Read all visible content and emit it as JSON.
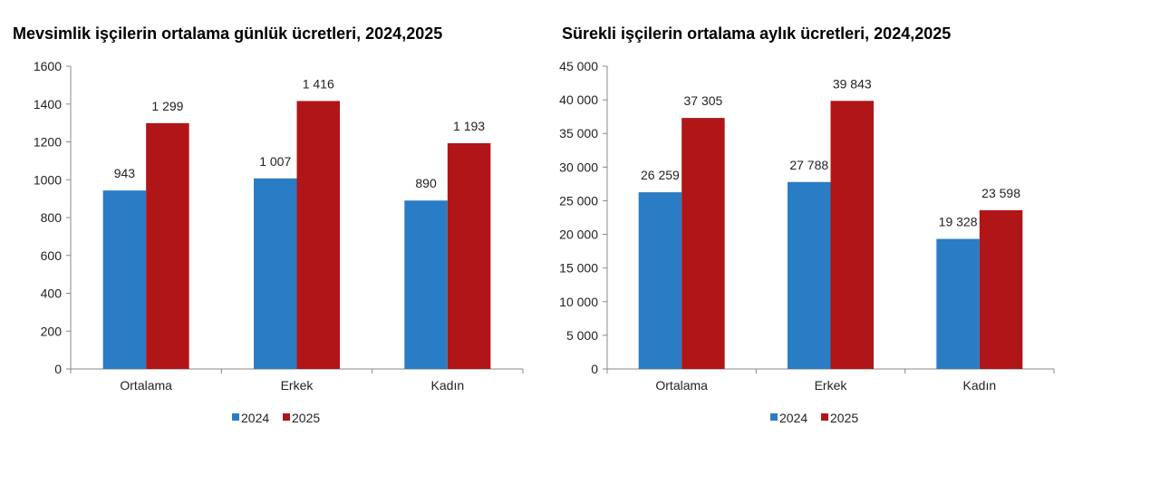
{
  "colors": {
    "2024": "#2a7cc4",
    "2025": "#b01517"
  },
  "chart_data": [
    {
      "type": "bar",
      "title": "Mevsimlik işçilerin ortalama günlük ücretleri, 2024,2025",
      "categories": [
        "Ortalama",
        "Erkek",
        "Kadın"
      ],
      "series": [
        {
          "name": "2024",
          "values": [
            943,
            1007,
            890
          ],
          "labels": [
            "943",
            "1 007",
            "890"
          ]
        },
        {
          "name": "2025",
          "values": [
            1299,
            1416,
            1193
          ],
          "labels": [
            "1 299",
            "1 416",
            "1 193"
          ]
        }
      ],
      "ylim": [
        0,
        1600
      ],
      "yticks": [
        0,
        200,
        400,
        600,
        800,
        1000,
        1200,
        1400,
        1600
      ],
      "ytick_labels": [
        "0",
        "200",
        "400",
        "600",
        "800",
        "1000",
        "1200",
        "1400",
        "1600"
      ],
      "grid": false,
      "legend": "bottom"
    },
    {
      "type": "bar",
      "title": "Sürekli işçilerin ortalama aylık ücretleri, 2024,2025",
      "categories": [
        "Ortalama",
        "Erkek",
        "Kadın"
      ],
      "series": [
        {
          "name": "2024",
          "values": [
            26259,
            27788,
            19328
          ],
          "labels": [
            "26 259",
            "27 788",
            "19 328"
          ]
        },
        {
          "name": "2025",
          "values": [
            37305,
            39843,
            23598
          ],
          "labels": [
            "37 305",
            "39 843",
            "23 598"
          ]
        }
      ],
      "ylim": [
        0,
        45000
      ],
      "yticks": [
        0,
        5000,
        10000,
        15000,
        20000,
        25000,
        30000,
        35000,
        40000,
        45000
      ],
      "ytick_labels": [
        "0",
        "5 000",
        "10 000",
        "15 000",
        "20 000",
        "25 000",
        "30 000",
        "35 000",
        "40 000",
        "45 000"
      ],
      "grid": false,
      "legend": "bottom"
    }
  ]
}
